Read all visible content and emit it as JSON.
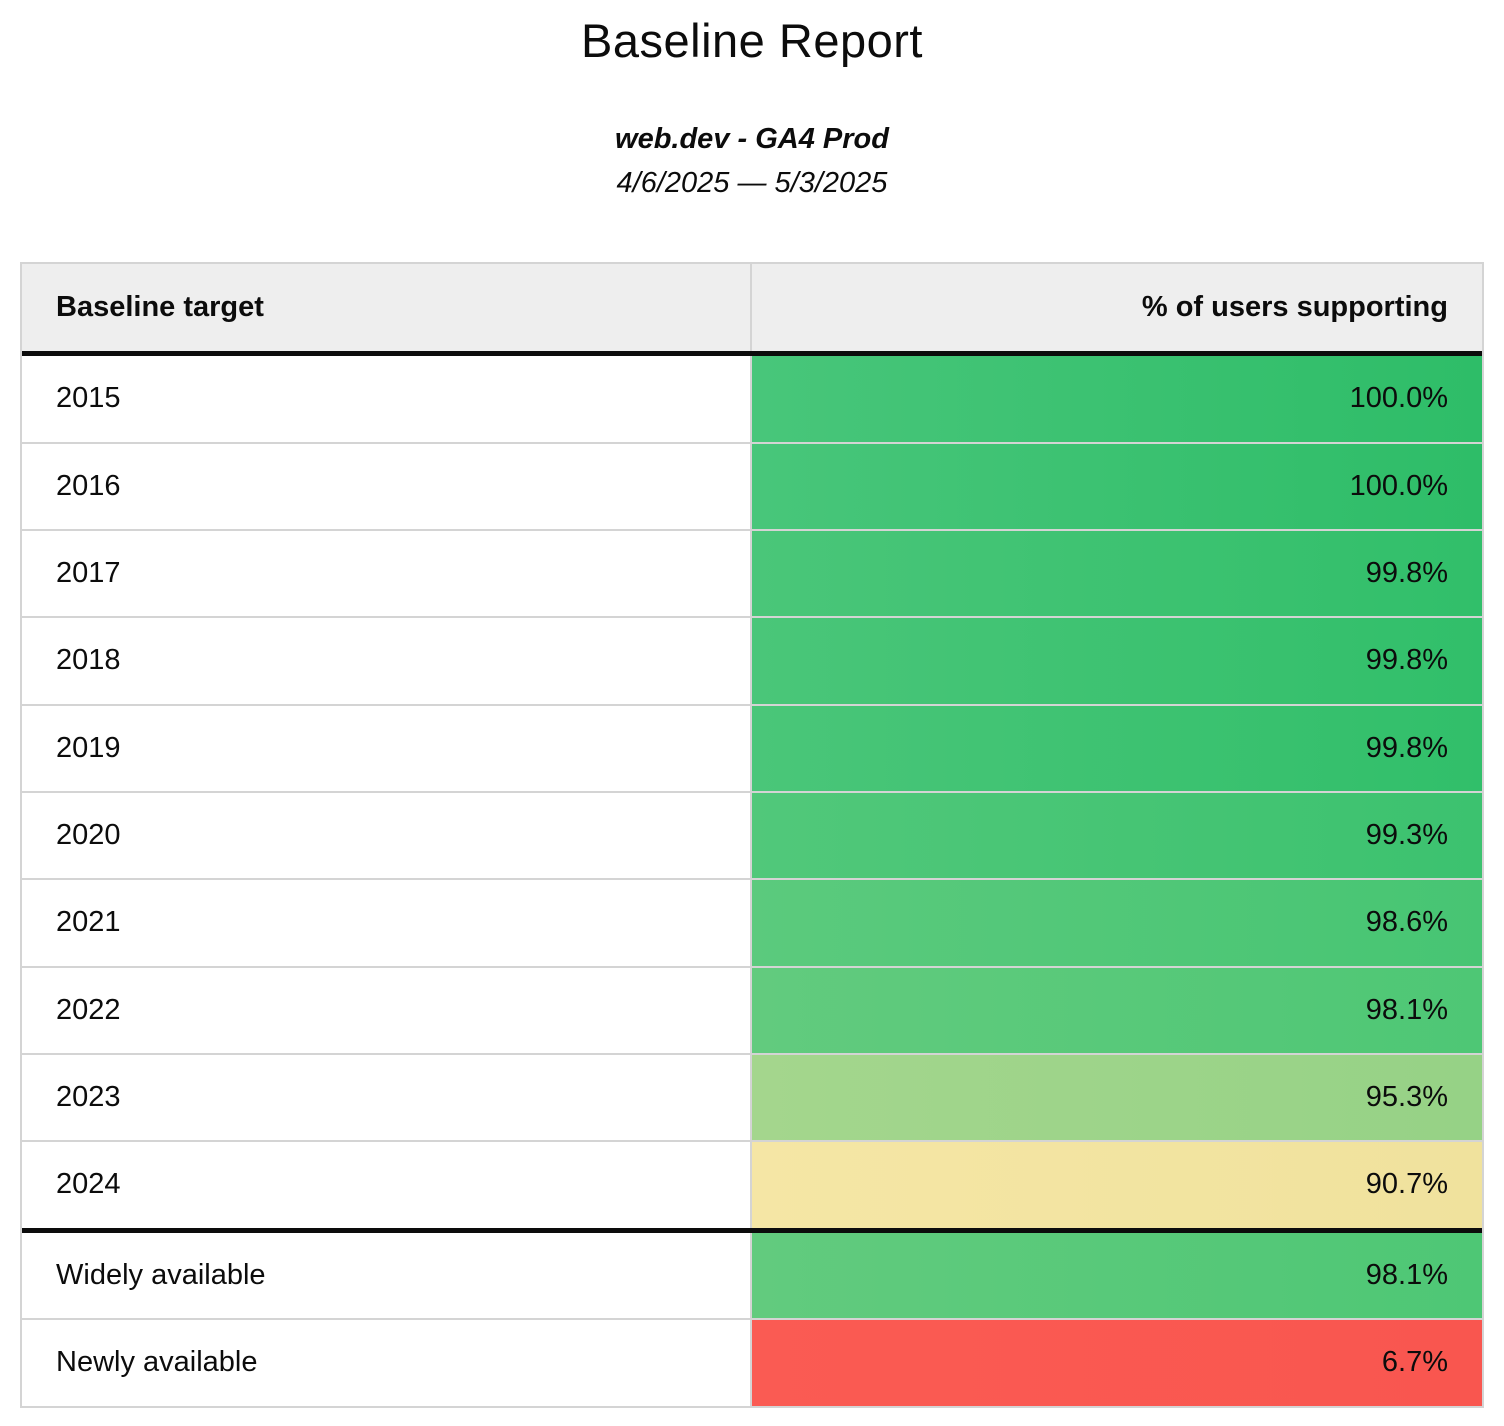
{
  "report": {
    "title": "Baseline Report",
    "subtitle": "web.dev - GA4 Prod",
    "date_range": "4/6/2025 — 5/3/2025"
  },
  "table": {
    "headers": [
      "Baseline target",
      "% of users supporting"
    ],
    "colors": {
      "header_bg": "#eeeeee",
      "border_light": "#d4d4d4",
      "border_dark": "#0c0c0c"
    },
    "rows": [
      {
        "label": "2015",
        "value": "100.0%",
        "bg_left": "#48c67a",
        "bg_right": "#2ebd68",
        "section_start": false
      },
      {
        "label": "2016",
        "value": "100.0%",
        "bg_left": "#48c67a",
        "bg_right": "#2ebd68",
        "section_start": false
      },
      {
        "label": "2017",
        "value": "99.8%",
        "bg_left": "#4ac679",
        "bg_right": "#31bf6a",
        "section_start": false
      },
      {
        "label": "2018",
        "value": "99.8%",
        "bg_left": "#4ac679",
        "bg_right": "#31bf6a",
        "section_start": false
      },
      {
        "label": "2019",
        "value": "99.8%",
        "bg_left": "#4ac679",
        "bg_right": "#31bf6a",
        "section_start": false
      },
      {
        "label": "2020",
        "value": "99.3%",
        "bg_left": "#51c87a",
        "bg_right": "#3cc26f",
        "section_start": false
      },
      {
        "label": "2021",
        "value": "98.6%",
        "bg_left": "#5bca7d",
        "bg_right": "#47c573",
        "section_start": false
      },
      {
        "label": "2022",
        "value": "98.1%",
        "bg_left": "#62cb7e",
        "bg_right": "#4ec775",
        "section_start": false
      },
      {
        "label": "2023",
        "value": "95.3%",
        "bg_left": "#a4d68d",
        "bg_right": "#96d286",
        "section_start": false
      },
      {
        "label": "2024",
        "value": "90.7%",
        "bg_left": "#f5e6a5",
        "bg_right": "#f0e29d",
        "section_start": false
      },
      {
        "label": "Widely available",
        "value": "98.1%",
        "bg_left": "#62cb7e",
        "bg_right": "#4ec775",
        "section_start": true
      },
      {
        "label": "Newly available",
        "value": "6.7%",
        "bg_left": "#fa5b53",
        "bg_right": "#f9564f",
        "section_start": false
      }
    ]
  }
}
